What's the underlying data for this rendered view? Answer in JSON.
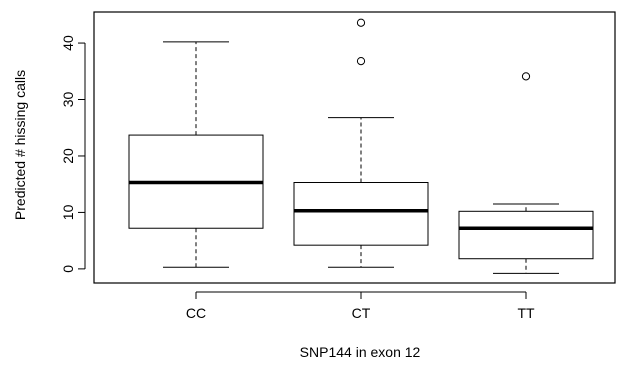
{
  "chart_data": {
    "type": "box",
    "title": "",
    "xlabel": "SNP144 in exon 12",
    "ylabel": "Predicted # hissing calls",
    "ylim": [
      -2.5,
      45.5
    ],
    "yticks": [
      0,
      10,
      20,
      30,
      40
    ],
    "categories": [
      "CC",
      "CT",
      "TT"
    ],
    "boxes": [
      {
        "category": "CC",
        "whisker_low": 0.3,
        "q1": 7.2,
        "median": 15.3,
        "q3": 23.7,
        "whisker_high": 40.2,
        "outliers": []
      },
      {
        "category": "CT",
        "whisker_low": 0.3,
        "q1": 4.2,
        "median": 10.3,
        "q3": 15.3,
        "whisker_high": 26.8,
        "outliers": [
          36.8,
          43.6
        ]
      },
      {
        "category": "TT",
        "whisker_low": -0.8,
        "q1": 1.8,
        "median": 7.2,
        "q3": 10.2,
        "whisker_high": 11.5,
        "outliers": [
          34.1
        ]
      }
    ],
    "grid": false,
    "legend": "none",
    "colors": {
      "box_fill": "#ffffff",
      "line": "#000000"
    }
  }
}
